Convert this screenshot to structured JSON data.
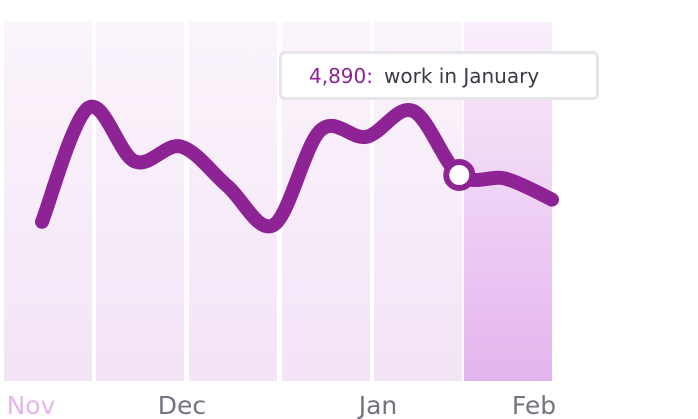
{
  "chart_data": {
    "type": "line",
    "x_tick_labels": [
      "Nov",
      "Dec",
      "Jan",
      "Feb"
    ],
    "highlighted_x_label": "Nov",
    "series": [
      {
        "values": [
          3200,
          5050,
          4180,
          4420,
          3780,
          3150,
          4680,
          4580,
          5000,
          3960,
          3900,
          3560
        ]
      }
    ],
    "ylim": [
      0,
      6800
    ],
    "highlight_band_index": 5,
    "hover_point_index": 9,
    "tooltip": {
      "value": "4,890:",
      "text": "work in January"
    },
    "colors": {
      "line": "#8d2395",
      "band": "#f2e0f5",
      "band_highlight_bottom": "#e6b8ef",
      "tick_label": "#747480",
      "tick_label_highlight": "#e6b5ef"
    }
  }
}
